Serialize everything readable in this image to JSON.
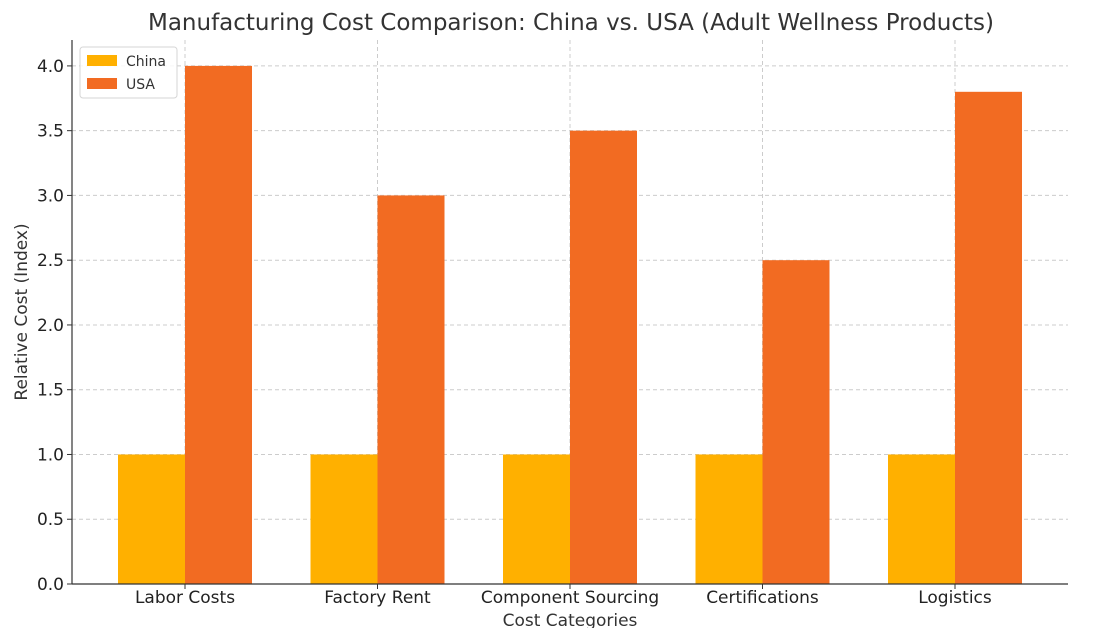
{
  "chart_data": {
    "type": "bar",
    "title": "Manufacturing Cost Comparison: China vs. USA (Adult Wellness Products)",
    "xlabel": "Cost Categories",
    "ylabel": "Relative Cost (Index)",
    "categories": [
      "Labor Costs",
      "Factory Rent",
      "Component Sourcing",
      "Certifications",
      "Logistics"
    ],
    "series": [
      {
        "name": "China",
        "values": [
          1.0,
          1.0,
          1.0,
          1.0,
          1.0
        ],
        "color": "#FFB000"
      },
      {
        "name": "USA",
        "values": [
          4.0,
          3.0,
          3.5,
          2.5,
          3.8
        ],
        "color": "#F26B22"
      }
    ],
    "ylim": [
      0,
      4.2
    ],
    "yticks": [
      "0.0",
      "0.5",
      "1.0",
      "1.5",
      "2.0",
      "2.5",
      "3.0",
      "3.5",
      "4.0"
    ],
    "grid": true,
    "legend_position": "top-left"
  }
}
